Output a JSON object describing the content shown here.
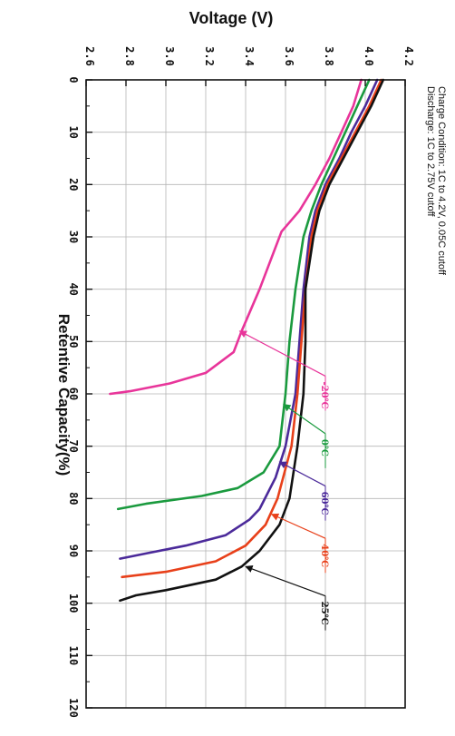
{
  "chart_data": {
    "type": "line",
    "title": "Voltage (V)",
    "xlabel": "Retentive Capacity(%)",
    "ylabel": "Voltage (V)",
    "xlim": [
      0,
      120
    ],
    "ylim": [
      2.6,
      4.2
    ],
    "x_ticks": [
      "0",
      "10",
      "20",
      "30",
      "40",
      "50",
      "60",
      "70",
      "80",
      "90",
      "100",
      "110",
      "120"
    ],
    "y_ticks": [
      "2.6",
      "2.8",
      "3.0",
      "3.2",
      "3.4",
      "3.6",
      "3.8",
      "4.0",
      "4.2"
    ],
    "grid": true,
    "annotations": [
      "Charge Condition: 1C to 4.2V, 0.05C cutoff",
      "Discharge: 1C to 2.75V cutoff"
    ],
    "series": [
      {
        "name": "-20℃",
        "color": "#e8359a",
        "label_value": 58,
        "arrow_to": [
          48,
          3.37
        ],
        "points": [
          [
            0,
            3.98
          ],
          [
            5,
            3.94
          ],
          [
            10,
            3.88
          ],
          [
            15,
            3.82
          ],
          [
            20,
            3.75
          ],
          [
            25,
            3.67
          ],
          [
            29,
            3.58
          ],
          [
            32,
            3.55
          ],
          [
            40,
            3.47
          ],
          [
            48,
            3.38
          ],
          [
            52,
            3.34
          ],
          [
            56,
            3.2
          ],
          [
            58,
            3.02
          ],
          [
            59.5,
            2.82
          ],
          [
            60,
            2.72
          ]
        ]
      },
      {
        "name": "0℃",
        "color": "#1a9a3e",
        "label_value": 69,
        "arrow_to": [
          62,
          3.59
        ],
        "points": [
          [
            0,
            4.02
          ],
          [
            5,
            3.96
          ],
          [
            10,
            3.9
          ],
          [
            15,
            3.84
          ],
          [
            20,
            3.78
          ],
          [
            25,
            3.73
          ],
          [
            30,
            3.69
          ],
          [
            40,
            3.65
          ],
          [
            50,
            3.62
          ],
          [
            60,
            3.6
          ],
          [
            70,
            3.57
          ],
          [
            75,
            3.49
          ],
          [
            78,
            3.36
          ],
          [
            79.5,
            3.18
          ],
          [
            81,
            2.9
          ],
          [
            82,
            2.76
          ]
        ]
      },
      {
        "name": "60℃",
        "color": "#4b2a9a",
        "label_value": 79,
        "arrow_to": [
          73,
          3.57
        ],
        "points": [
          [
            0,
            4.06
          ],
          [
            5,
            4.0
          ],
          [
            10,
            3.93
          ],
          [
            15,
            3.87
          ],
          [
            20,
            3.8
          ],
          [
            25,
            3.75
          ],
          [
            30,
            3.72
          ],
          [
            40,
            3.69
          ],
          [
            50,
            3.67
          ],
          [
            60,
            3.65
          ],
          [
            70,
            3.6
          ],
          [
            76,
            3.55
          ],
          [
            82,
            3.47
          ],
          [
            84,
            3.42
          ],
          [
            87,
            3.3
          ],
          [
            89,
            3.1
          ],
          [
            90.5,
            2.9
          ],
          [
            91.5,
            2.77
          ]
        ]
      },
      {
        "name": "40℃",
        "color": "#e8401a",
        "label_value": 89,
        "arrow_to": [
          83,
          3.53
        ],
        "points": [
          [
            0,
            4.08
          ],
          [
            5,
            4.02
          ],
          [
            10,
            3.95
          ],
          [
            15,
            3.88
          ],
          [
            20,
            3.81
          ],
          [
            25,
            3.76
          ],
          [
            30,
            3.73
          ],
          [
            40,
            3.7
          ],
          [
            50,
            3.68
          ],
          [
            60,
            3.66
          ],
          [
            70,
            3.63
          ],
          [
            80,
            3.56
          ],
          [
            85,
            3.5
          ],
          [
            89,
            3.4
          ],
          [
            92,
            3.25
          ],
          [
            94,
            3.0
          ],
          [
            95,
            2.78
          ]
        ]
      },
      {
        "name": "25℃",
        "color": "#111111",
        "label_value": 100,
        "arrow_to": [
          93,
          3.4
        ],
        "points": [
          [
            0,
            4.09
          ],
          [
            5,
            4.03
          ],
          [
            10,
            3.96
          ],
          [
            15,
            3.89
          ],
          [
            20,
            3.82
          ],
          [
            25,
            3.77
          ],
          [
            30,
            3.74
          ],
          [
            40,
            3.7
          ],
          [
            50,
            3.7
          ],
          [
            60,
            3.69
          ],
          [
            70,
            3.66
          ],
          [
            80,
            3.62
          ],
          [
            85,
            3.57
          ],
          [
            90,
            3.47
          ],
          [
            93,
            3.38
          ],
          [
            95.5,
            3.25
          ],
          [
            97.5,
            3.0
          ],
          [
            98.5,
            2.85
          ],
          [
            99.5,
            2.77
          ]
        ]
      }
    ]
  }
}
